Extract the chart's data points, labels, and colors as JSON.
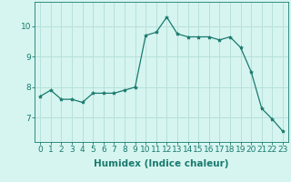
{
  "x": [
    0,
    1,
    2,
    3,
    4,
    5,
    6,
    7,
    8,
    9,
    10,
    11,
    12,
    13,
    14,
    15,
    16,
    17,
    18,
    19,
    20,
    21,
    22,
    23
  ],
  "y": [
    7.7,
    7.9,
    7.6,
    7.6,
    7.5,
    7.8,
    7.8,
    7.8,
    7.9,
    8.0,
    9.7,
    9.8,
    10.3,
    9.75,
    9.65,
    9.65,
    9.65,
    9.55,
    9.65,
    9.3,
    8.5,
    7.3,
    6.95,
    6.55
  ],
  "line_color": "#1a7a6e",
  "marker": "*",
  "marker_size": 3,
  "bg_color": "#d6f5f0",
  "grid_color": "#b8e0da",
  "xlabel": "Humidex (Indice chaleur)",
  "xlabel_fontsize": 7.5,
  "tick_fontsize": 6.5,
  "yticks": [
    7,
    8,
    9,
    10
  ],
  "ylim": [
    6.2,
    10.8
  ],
  "xlim": [
    -0.5,
    23.5
  ]
}
